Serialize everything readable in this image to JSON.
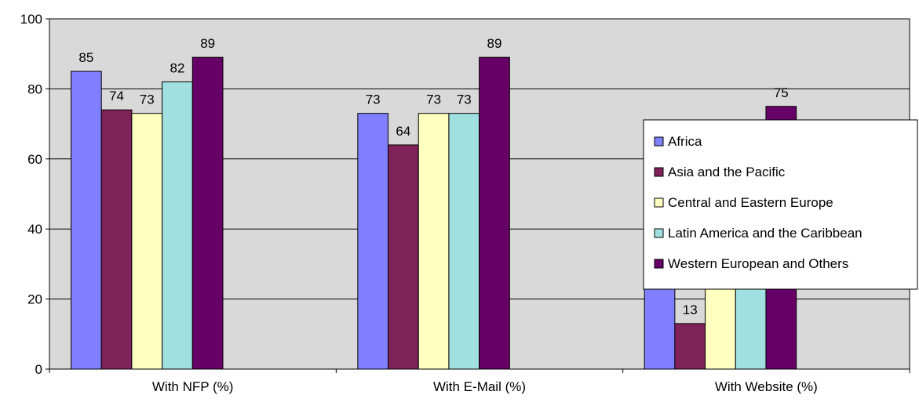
{
  "chart_data": {
    "type": "bar",
    "categories": [
      "With NFP (%)",
      "With E-Mail (%)",
      "With Website (%)"
    ],
    "series": [
      {
        "name": "Africa",
        "color": "#8080ff",
        "values": [
          85,
          73,
          31
        ]
      },
      {
        "name": "Asia and the Pacific",
        "color": "#80225a",
        "values": [
          74,
          64,
          13
        ]
      },
      {
        "name": "Central and Eastern Europe",
        "color": "#ffffc0",
        "values": [
          73,
          73,
          45
        ]
      },
      {
        "name": "Latin America and the Caribbean",
        "color": "#a0e0e0",
        "values": [
          82,
          73,
          36
        ]
      },
      {
        "name": "Western European and Others",
        "color": "#660066",
        "values": [
          89,
          89,
          75
        ]
      }
    ],
    "data_labels": [
      [
        "85",
        "73",
        "31"
      ],
      [
        "74",
        "64",
        "13"
      ],
      [
        "73",
        "73",
        "45"
      ],
      [
        "82",
        "73",
        "36"
      ],
      [
        "89",
        "89",
        "75"
      ]
    ],
    "y_ticks": [
      "0",
      "20",
      "40",
      "60",
      "80",
      "100"
    ],
    "ylim": [
      0,
      100
    ],
    "title": "",
    "xlabel": "",
    "ylabel": "",
    "grid": true,
    "plot_background": "#d9d9d9",
    "legend_position": "right"
  }
}
